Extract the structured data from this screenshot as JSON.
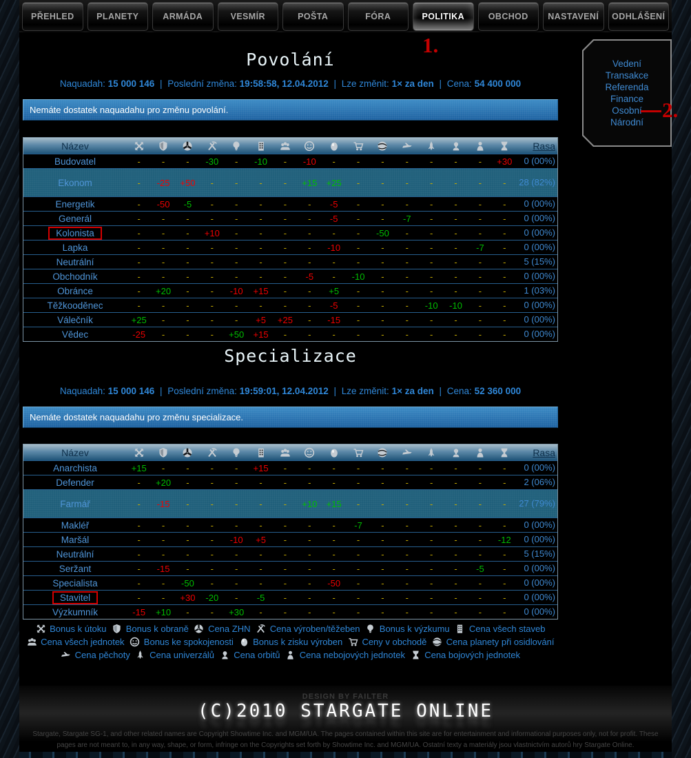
{
  "ui": {
    "sep": "|"
  },
  "nav": {
    "tabs": [
      {
        "label": "PŘEHLED"
      },
      {
        "label": "PLANETY"
      },
      {
        "label": "ARMÁDA"
      },
      {
        "label": "VESMÍR"
      },
      {
        "label": "POŠTA"
      },
      {
        "label": "FÓRA"
      },
      {
        "label": "POLITIKA",
        "active": true
      },
      {
        "label": "OBCHOD"
      },
      {
        "label": "NASTAVENÍ"
      },
      {
        "label": "ODHLÁŠENÍ"
      }
    ]
  },
  "annotations": {
    "step1": "1.",
    "step2": "2."
  },
  "sidebar": {
    "items": [
      "Vedení",
      "Transakce",
      "Referenda",
      "Finance",
      "Osobní",
      "Národní"
    ]
  },
  "columns": {
    "name_label": "Název",
    "rasa_label": "Rasa",
    "icons": [
      "attack",
      "defense",
      "zhn",
      "production",
      "research",
      "buildings",
      "units",
      "satisfaction",
      "profit",
      "trade",
      "planet",
      "infantry",
      "universal",
      "orbit",
      "noncombat",
      "combat"
    ]
  },
  "sections": [
    {
      "title": "Povolání",
      "info": {
        "naquadah_label": "Naquadah:",
        "naquadah": "15 000 146",
        "change_label": "Poslední změna:",
        "change": "19:58:58, 12.04.2012",
        "limit_label": "Lze změnit:",
        "limit": "1× za den",
        "price_label": "Cena:",
        "price": "54 400 000"
      },
      "alert": "Nemáte dostatek naquadahu pro změnu povolání.",
      "table": {
        "rows": [
          {
            "name": "Budovatel",
            "cells": [
              "-",
              "-",
              "-",
              "g:-30",
              "-",
              "g:-10",
              "-",
              "r:-10",
              "-",
              "-",
              "-",
              "-",
              "-",
              "-",
              "-",
              "r:+30"
            ],
            "rasa": "0 (00%)"
          },
          {
            "name": "Ekonom",
            "hl": true,
            "cells": [
              "-",
              "r:-25",
              "r:+50",
              "-",
              "-",
              "-",
              "-",
              "g:+15",
              "g:+25",
              "-",
              "-",
              "-",
              "-",
              "-",
              "-",
              "-"
            ],
            "rasa": "28 (82%)"
          },
          {
            "name": "Energetik",
            "cells": [
              "-",
              "r:-50",
              "g:-5",
              "-",
              "-",
              "-",
              "-",
              "-",
              "r:-5",
              "-",
              "-",
              "-",
              "-",
              "-",
              "-",
              "-"
            ],
            "rasa": "0 (00%)"
          },
          {
            "name": "Generál",
            "cells": [
              "-",
              "-",
              "-",
              "-",
              "-",
              "-",
              "-",
              "-",
              "r:-5",
              "-",
              "-",
              "g:-7",
              "-",
              "-",
              "-",
              "-"
            ],
            "rasa": "0 (00%)"
          },
          {
            "name": "Kolonista",
            "boxed": true,
            "cells": [
              "-",
              "-",
              "-",
              "r:+10",
              "-",
              "-",
              "-",
              "-",
              "-",
              "-",
              "g:-50",
              "-",
              "-",
              "-",
              "-",
              "-"
            ],
            "rasa": "0 (00%)"
          },
          {
            "name": "Lapka",
            "cells": [
              "-",
              "-",
              "-",
              "-",
              "-",
              "-",
              "-",
              "-",
              "r:-10",
              "-",
              "-",
              "-",
              "-",
              "-",
              "g:-7",
              "-"
            ],
            "rasa": "0 (00%)"
          },
          {
            "name": "Neutrální",
            "cells": [
              "-",
              "-",
              "-",
              "-",
              "-",
              "-",
              "-",
              "-",
              "-",
              "-",
              "-",
              "-",
              "-",
              "-",
              "-",
              "-"
            ],
            "rasa": "5 (15%)"
          },
          {
            "name": "Obchodník",
            "cells": [
              "-",
              "-",
              "-",
              "-",
              "-",
              "-",
              "-",
              "r:-5",
              "-",
              "g:-10",
              "-",
              "-",
              "-",
              "-",
              "-",
              "-"
            ],
            "rasa": "0 (00%)"
          },
          {
            "name": "Obránce",
            "cells": [
              "-",
              "g:+20",
              "-",
              "-",
              "r:-10",
              "r:+15",
              "-",
              "-",
              "g:+5",
              "-",
              "-",
              "-",
              "-",
              "-",
              "-",
              "-"
            ],
            "rasa": "1 (03%)"
          },
          {
            "name": "Těžkooděnec",
            "cells": [
              "-",
              "-",
              "-",
              "-",
              "-",
              "-",
              "-",
              "-",
              "r:-5",
              "-",
              "-",
              "-",
              "g:-10",
              "g:-10",
              "-",
              "-"
            ],
            "rasa": "0 (00%)"
          },
          {
            "name": "Válečník",
            "cells": [
              "g:+25",
              "-",
              "-",
              "-",
              "-",
              "r:+5",
              "r:+25",
              "-",
              "r:-15",
              "-",
              "-",
              "-",
              "-",
              "-",
              "-",
              "-"
            ],
            "rasa": "0 (00%)"
          },
          {
            "name": "Vědec",
            "cells": [
              "r:-25",
              "-",
              "-",
              "-",
              "g:+50",
              "r:+15",
              "-",
              "-",
              "-",
              "-",
              "-",
              "-",
              "-",
              "-",
              "-",
              "-"
            ],
            "rasa": "0 (00%)"
          }
        ]
      }
    },
    {
      "title": "Specializace",
      "info": {
        "naquadah_label": "Naquadah:",
        "naquadah": "15 000 146",
        "change_label": "Poslední změna:",
        "change": "19:59:01, 12.04.2012",
        "limit_label": "Lze změnit:",
        "limit": "1× za den",
        "price_label": "Cena:",
        "price": "52 360 000"
      },
      "alert": "Nemáte dostatek naquadahu pro změnu specializace.",
      "table": {
        "rows": [
          {
            "name": "Anarchista",
            "cells": [
              "g:+15",
              "-",
              "-",
              "-",
              "-",
              "r:+15",
              "-",
              "-",
              "-",
              "-",
              "-",
              "-",
              "-",
              "-",
              "-",
              "-"
            ],
            "rasa": "0 (00%)"
          },
          {
            "name": "Defender",
            "cells": [
              "-",
              "g:+20",
              "-",
              "-",
              "-",
              "-",
              "-",
              "-",
              "-",
              "-",
              "-",
              "-",
              "-",
              "-",
              "-",
              "-"
            ],
            "rasa": "2 (06%)"
          },
          {
            "name": "Farmář",
            "hl": true,
            "cells": [
              "-",
              "r:-15",
              "-",
              "-",
              "-",
              "-",
              "-",
              "g:+10",
              "g:+15",
              "-",
              "-",
              "-",
              "-",
              "-",
              "-",
              "-"
            ],
            "rasa": "27 (79%)"
          },
          {
            "name": "Makléř",
            "cells": [
              "-",
              "-",
              "-",
              "-",
              "-",
              "-",
              "-",
              "-",
              "-",
              "g:-7",
              "-",
              "-",
              "-",
              "-",
              "-",
              "-"
            ],
            "rasa": "0 (00%)"
          },
          {
            "name": "Maršál",
            "cells": [
              "-",
              "-",
              "-",
              "-",
              "r:-10",
              "r:+5",
              "-",
              "-",
              "-",
              "-",
              "-",
              "-",
              "-",
              "-",
              "-",
              "g:-12"
            ],
            "rasa": "0 (00%)"
          },
          {
            "name": "Neutrální",
            "cells": [
              "-",
              "-",
              "-",
              "-",
              "-",
              "-",
              "-",
              "-",
              "-",
              "-",
              "-",
              "-",
              "-",
              "-",
              "-",
              "-"
            ],
            "rasa": "5 (15%)"
          },
          {
            "name": "Seržant",
            "cells": [
              "-",
              "r:-15",
              "-",
              "-",
              "-",
              "-",
              "-",
              "-",
              "-",
              "-",
              "-",
              "-",
              "-",
              "-",
              "g:-5",
              "-"
            ],
            "rasa": "0 (00%)"
          },
          {
            "name": "Specialista",
            "cells": [
              "-",
              "-",
              "g:-50",
              "-",
              "-",
              "-",
              "-",
              "-",
              "r:-50",
              "-",
              "-",
              "-",
              "-",
              "-",
              "-",
              "-"
            ],
            "rasa": "0 (00%)"
          },
          {
            "name": "Stavitel",
            "boxed": true,
            "cells": [
              "-",
              "-",
              "r:+30",
              "g:-20",
              "-",
              "g:-5",
              "-",
              "-",
              "-",
              "-",
              "-",
              "-",
              "-",
              "-",
              "-",
              "-"
            ],
            "rasa": "0 (00%)"
          },
          {
            "name": "Výzkumník",
            "cells": [
              "r:-15",
              "g:+10",
              "-",
              "-",
              "g:+30",
              "-",
              "-",
              "-",
              "-",
              "-",
              "-",
              "-",
              "-",
              "-",
              "-",
              "-"
            ],
            "rasa": "0 (00%)"
          }
        ]
      }
    }
  ],
  "legend": [
    {
      "icon": "attack",
      "label": "Bonus k útoku"
    },
    {
      "icon": "defense",
      "label": "Bonus k obraně"
    },
    {
      "icon": "zhn",
      "label": "Cena ZHN"
    },
    {
      "icon": "production",
      "label": "Cena výroben/těžeben"
    },
    {
      "icon": "research",
      "label": "Bonus k výzkumu"
    },
    {
      "icon": "buildings",
      "label": "Cena všech staveb"
    },
    {
      "icon": "units",
      "label": "Cena všech jednotek"
    },
    {
      "icon": "satisfaction",
      "label": "Bonus ke spokojenosti"
    },
    {
      "icon": "profit",
      "label": "Bonus k zisku výroben"
    },
    {
      "icon": "trade",
      "label": "Ceny v obchodě"
    },
    {
      "icon": "planet",
      "label": "Cena planety při osidlování"
    },
    {
      "icon": "infantry",
      "label": "Cena pěchoty"
    },
    {
      "icon": "universal",
      "label": "Cena univerzálů"
    },
    {
      "icon": "orbit",
      "label": "Cena orbitů"
    },
    {
      "icon": "noncombat",
      "label": "Cena nebojových jednotek"
    },
    {
      "icon": "combat",
      "label": "Cena bojových jednotek"
    }
  ],
  "footer": {
    "design": "DESIGN BY FAILTER",
    "logo": "(C)2010 STARGATE ONLINE",
    "copyright": "Stargate, Stargate SG-1, and other related names are Copyright Showtime Inc. and MGM/UA. The pages contained within this site are for entertainment and informational purposes only, not for profit. These pages are not meant to, in any way, shape, or form, infringe on the Copyrights set forth by Showtime Inc. and MGM/UA. Ostatní texty a materiály jsou vlastnictvím autorů hry Stargate Online."
  }
}
